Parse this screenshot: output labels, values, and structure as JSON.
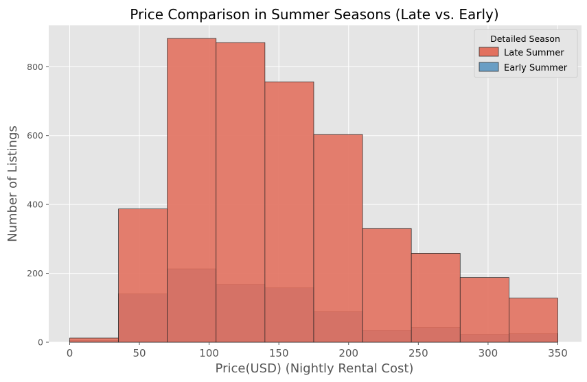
{
  "chart_data": {
    "type": "bar",
    "stacked": "overlay",
    "title": "Price Comparison in Summer Seasons (Late vs. Early)",
    "xlabel": "Price(USD) (Nightly Rental Cost)",
    "ylabel": "Number of Listings",
    "xlim": [
      -15,
      367
    ],
    "ylim": [
      0,
      920
    ],
    "xticks": [
      0,
      50,
      100,
      150,
      200,
      250,
      300,
      350
    ],
    "yticks": [
      0,
      200,
      400,
      600,
      800
    ],
    "bin_edges": [
      0,
      35,
      70,
      105,
      140,
      175,
      210,
      245,
      280,
      315,
      350
    ],
    "grid": true,
    "legend": {
      "title": "Detailed Season",
      "placement": "top-right"
    },
    "series": [
      {
        "name": "Late Summer",
        "color": "#e2715f",
        "values": [
          12,
          387,
          882,
          870,
          756,
          603,
          330,
          258,
          188,
          128
        ]
      },
      {
        "name": "Early Summer",
        "color": "#5f7f9f",
        "values": [
          5,
          141,
          213,
          168,
          158,
          89,
          35,
          43,
          23,
          25
        ]
      }
    ],
    "legend_swatch_colors": [
      "#e2715f",
      "#6a9ec4"
    ]
  }
}
